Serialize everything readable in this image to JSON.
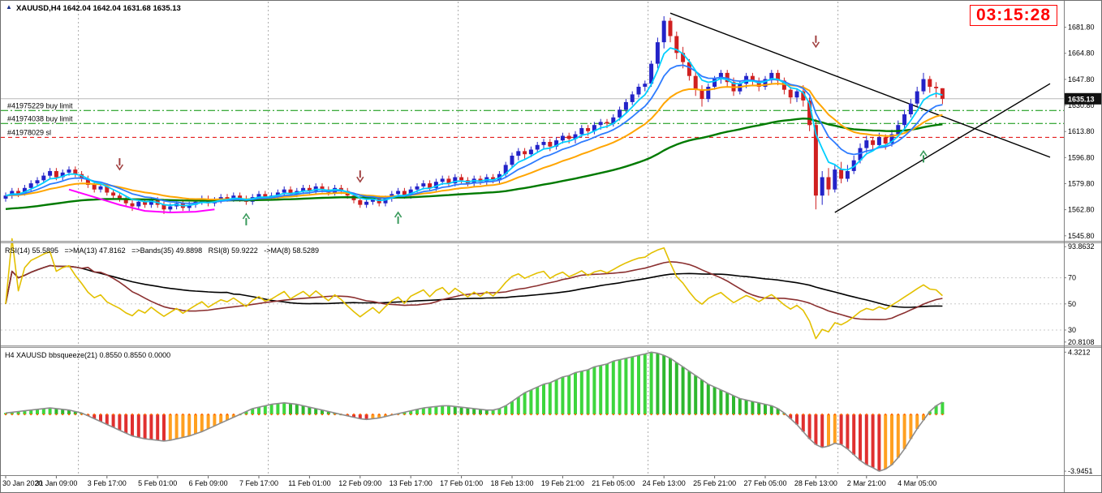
{
  "ui": {
    "chart_icon": "▲",
    "symbol_title": "XAUUSD,H4 1642.04 1642.04 1631.68 1635.13",
    "clock": "03:15:28",
    "rsi_label": "RSI(14) 55.5895   =>MA(13) 47.8162   =>Bands(35) 49.8898   RSI(8) 59.9222   ->MA(8) 58.5289",
    "squeeze_label": "H4 XAUUSD bbsqueeze(21) 0.8550 0.8550 0.0000"
  },
  "colors": {
    "up_candle": "#2323c8",
    "down_candle": "#d02020",
    "ma_fast": "#00cfff",
    "ma_mid": "#2e7cff",
    "ma_slow": "#ffa500",
    "ma_trend": "#007a00",
    "ma_magenta": "#ff00ff",
    "trendline": "#000000",
    "order_buy": "#009000",
    "order_sl": "#e00000",
    "bid_line": "#b8b8b8",
    "price_box_bg": "#111111",
    "rsi_main": "#e3c000",
    "rsi_ma": "#8b3030",
    "rsi_bands": "#000000",
    "level_line": "#c8c8c8",
    "separator": "#ababab",
    "sq_pos_up": "#3dd63d",
    "sq_pos_down": "#2eb82e",
    "sq_neg_down": "#e03030",
    "sq_neg_up": "#ffa020",
    "sq_line": "#8c8c8c",
    "sq_dot": "#ff6600",
    "axis_text": "#000000",
    "arrow_down": "#a04040",
    "arrow_up": "#3a9a5c",
    "clock": "#ff0000"
  },
  "chart_data": [
    {
      "type": "candlestick",
      "symbol": "XAUUSD",
      "timeframe": "H4",
      "ohlc_display": {
        "open": "1642.04",
        "high": "1642.04",
        "low": "1631.68",
        "close": "1635.13"
      },
      "current_price": 1635.13,
      "current_price_label": "1635.13",
      "price_range": {
        "top": 1698.5,
        "bottom": 1542.5
      },
      "price_axis_ticks": [
        "1681.80",
        "1664.80",
        "1647.80",
        "1630.80",
        "1613.80",
        "1596.80",
        "1579.80",
        "1562.80",
        "1545.80"
      ],
      "label_every_bars": 8,
      "time_labels": [
        "30 Jan 2020",
        "31 Jan 09:00",
        "3 Feb 17:00",
        "5 Feb 01:00",
        "6 Feb 09:00",
        "7 Feb 17:00",
        "11 Feb 01:00",
        "12 Feb 09:00",
        "13 Feb 17:00",
        "17 Feb 01:00",
        "18 Feb 13:00",
        "19 Feb 21:00",
        "21 Feb 05:00",
        "24 Feb 13:00",
        "25 Feb 21:00",
        "27 Feb 05:00",
        "28 Feb 13:00",
        "2 Mar 21:00",
        "4 Mar 05:00"
      ],
      "week_separator_bars": [
        12,
        42,
        72,
        102,
        132
      ],
      "orders": [
        {
          "label": "#41975229 buy limit",
          "price": 1627.5,
          "type": "buy_limit"
        },
        {
          "label": "#41974038 buy limit",
          "price": 1619.0,
          "type": "buy_limit"
        },
        {
          "label": "#41978029 sl",
          "price": 1610.0,
          "type": "sl"
        }
      ],
      "trendlines": [
        {
          "b1": 105,
          "p1": 1691,
          "b2": 165,
          "p2": 1597
        },
        {
          "b1": 131,
          "p1": 1561,
          "b2": 165,
          "p2": 1645
        }
      ],
      "arrows": [
        {
          "bar": 18,
          "price": 1589,
          "dir": "down"
        },
        {
          "bar": 56,
          "price": 1581,
          "dir": "down"
        },
        {
          "bar": 128,
          "price": 1669,
          "dir": "down"
        },
        {
          "bar": 38,
          "price": 1560,
          "dir": "up"
        },
        {
          "bar": 62,
          "price": 1561,
          "dir": "up"
        },
        {
          "bar": 145,
          "price": 1601,
          "dir": "up"
        }
      ],
      "magenta_line": {
        "points": [
          [
            10,
            1576
          ],
          [
            14,
            1571
          ],
          [
            18,
            1566
          ],
          [
            22,
            1562
          ],
          [
            26,
            1561
          ],
          [
            30,
            1561.5
          ],
          [
            33,
            1563
          ]
        ]
      },
      "indicators": {
        "fast_ema": 5,
        "mid_ema": 10,
        "slow_ema": 21,
        "trend_alpha": 0.028,
        "trend_seed": 1563
      },
      "candles": [
        [
          1570,
          1574,
          1568,
          1572
        ],
        [
          1572,
          1577,
          1570,
          1575
        ],
        [
          1575,
          1577,
          1571,
          1573
        ],
        [
          1573,
          1579,
          1572,
          1577
        ],
        [
          1577,
          1582,
          1575,
          1580
        ],
        [
          1580,
          1584,
          1578,
          1582
        ],
        [
          1582,
          1587,
          1580,
          1585
        ],
        [
          1585,
          1590,
          1583,
          1588
        ],
        [
          1588,
          1590,
          1582,
          1584
        ],
        [
          1584,
          1589,
          1582,
          1587
        ],
        [
          1587,
          1591,
          1585,
          1589
        ],
        [
          1589,
          1591,
          1584,
          1586
        ],
        [
          1586,
          1588,
          1581,
          1583
        ],
        [
          1583,
          1585,
          1577,
          1579
        ],
        [
          1579,
          1581,
          1574,
          1576
        ],
        [
          1576,
          1580,
          1574,
          1578
        ],
        [
          1578,
          1580,
          1572,
          1574
        ],
        [
          1574,
          1576,
          1570,
          1572
        ],
        [
          1572,
          1574,
          1568,
          1570
        ],
        [
          1570,
          1572,
          1565,
          1567
        ],
        [
          1567,
          1569,
          1562,
          1565
        ],
        [
          1565,
          1570,
          1563,
          1568
        ],
        [
          1568,
          1570,
          1564,
          1566
        ],
        [
          1566,
          1571,
          1564,
          1569
        ],
        [
          1569,
          1571,
          1564,
          1566
        ],
        [
          1566,
          1568,
          1560,
          1563
        ],
        [
          1563,
          1567,
          1561,
          1565
        ],
        [
          1565,
          1569,
          1563,
          1567
        ],
        [
          1567,
          1569,
          1562,
          1564
        ],
        [
          1564,
          1568,
          1562,
          1566
        ],
        [
          1566,
          1570,
          1564,
          1568
        ],
        [
          1568,
          1572,
          1566,
          1570
        ],
        [
          1570,
          1572,
          1565,
          1567
        ],
        [
          1567,
          1571,
          1565,
          1569
        ],
        [
          1569,
          1573,
          1567,
          1571
        ],
        [
          1571,
          1573,
          1568,
          1570
        ],
        [
          1570,
          1574,
          1568,
          1572
        ],
        [
          1572,
          1574,
          1568,
          1570
        ],
        [
          1570,
          1572,
          1566,
          1568
        ],
        [
          1568,
          1573,
          1566,
          1571
        ],
        [
          1571,
          1575,
          1569,
          1573
        ],
        [
          1573,
          1575,
          1569,
          1571
        ],
        [
          1571,
          1574,
          1569,
          1572
        ],
        [
          1572,
          1576,
          1570,
          1574
        ],
        [
          1574,
          1578,
          1572,
          1576
        ],
        [
          1576,
          1578,
          1571,
          1573
        ],
        [
          1573,
          1577,
          1571,
          1575
        ],
        [
          1575,
          1579,
          1573,
          1577
        ],
        [
          1577,
          1579,
          1573,
          1575
        ],
        [
          1575,
          1580,
          1573,
          1578
        ],
        [
          1578,
          1580,
          1574,
          1576
        ],
        [
          1576,
          1578,
          1572,
          1574
        ],
        [
          1574,
          1579,
          1572,
          1577
        ],
        [
          1577,
          1579,
          1573,
          1575
        ],
        [
          1575,
          1577,
          1570,
          1572
        ],
        [
          1572,
          1574,
          1567,
          1569
        ],
        [
          1569,
          1571,
          1564,
          1566
        ],
        [
          1566,
          1570,
          1564,
          1568
        ],
        [
          1568,
          1572,
          1566,
          1570
        ],
        [
          1570,
          1572,
          1565,
          1567
        ],
        [
          1567,
          1572,
          1565,
          1570
        ],
        [
          1570,
          1575,
          1568,
          1573
        ],
        [
          1573,
          1577,
          1571,
          1575
        ],
        [
          1575,
          1577,
          1570,
          1572
        ],
        [
          1572,
          1578,
          1570,
          1576
        ],
        [
          1576,
          1580,
          1574,
          1578
        ],
        [
          1578,
          1582,
          1576,
          1580
        ],
        [
          1580,
          1582,
          1575,
          1577
        ],
        [
          1577,
          1583,
          1575,
          1581
        ],
        [
          1581,
          1585,
          1579,
          1583
        ],
        [
          1583,
          1585,
          1578,
          1580
        ],
        [
          1580,
          1586,
          1578,
          1584
        ],
        [
          1584,
          1586,
          1580,
          1582
        ],
        [
          1582,
          1584,
          1578,
          1580
        ],
        [
          1580,
          1585,
          1578,
          1583
        ],
        [
          1583,
          1585,
          1579,
          1581
        ],
        [
          1581,
          1586,
          1579,
          1584
        ],
        [
          1584,
          1586,
          1580,
          1582
        ],
        [
          1582,
          1588,
          1580,
          1586
        ],
        [
          1586,
          1594,
          1584,
          1592
        ],
        [
          1592,
          1600,
          1590,
          1598
        ],
        [
          1598,
          1603,
          1595,
          1601
        ],
        [
          1601,
          1603,
          1596,
          1599
        ],
        [
          1599,
          1604,
          1597,
          1602
        ],
        [
          1602,
          1607,
          1600,
          1605
        ],
        [
          1605,
          1609,
          1602,
          1607
        ],
        [
          1607,
          1609,
          1601,
          1604
        ],
        [
          1604,
          1610,
          1602,
          1608
        ],
        [
          1608,
          1613,
          1606,
          1611
        ],
        [
          1611,
          1613,
          1606,
          1609
        ],
        [
          1609,
          1614,
          1606,
          1612
        ],
        [
          1612,
          1618,
          1610,
          1616
        ],
        [
          1616,
          1618,
          1611,
          1614
        ],
        [
          1614,
          1620,
          1612,
          1618
        ],
        [
          1618,
          1622,
          1615,
          1620
        ],
        [
          1620,
          1622,
          1616,
          1619
        ],
        [
          1619,
          1625,
          1617,
          1623
        ],
        [
          1623,
          1630,
          1621,
          1628
        ],
        [
          1628,
          1635,
          1626,
          1633
        ],
        [
          1633,
          1640,
          1631,
          1638
        ],
        [
          1638,
          1645,
          1636,
          1643
        ],
        [
          1643,
          1647,
          1640,
          1645
        ],
        [
          1645,
          1660,
          1643,
          1658
        ],
        [
          1658,
          1675,
          1655,
          1672
        ],
        [
          1672,
          1689,
          1668,
          1686
        ],
        [
          1686,
          1688,
          1672,
          1676
        ],
        [
          1676,
          1679,
          1661,
          1665
        ],
        [
          1665,
          1669,
          1655,
          1659
        ],
        [
          1659,
          1661,
          1647,
          1650
        ],
        [
          1650,
          1653,
          1637,
          1641
        ],
        [
          1641,
          1644,
          1630,
          1635
        ],
        [
          1635,
          1645,
          1633,
          1643
        ],
        [
          1643,
          1650,
          1641,
          1648
        ],
        [
          1648,
          1654,
          1645,
          1652
        ],
        [
          1652,
          1654,
          1643,
          1646
        ],
        [
          1646,
          1649,
          1637,
          1640
        ],
        [
          1640,
          1647,
          1638,
          1645
        ],
        [
          1645,
          1652,
          1642,
          1650
        ],
        [
          1650,
          1652,
          1644,
          1647
        ],
        [
          1647,
          1649,
          1640,
          1643
        ],
        [
          1643,
          1650,
          1641,
          1648
        ],
        [
          1648,
          1654,
          1645,
          1652
        ],
        [
          1652,
          1654,
          1644,
          1647
        ],
        [
          1647,
          1649,
          1638,
          1641
        ],
        [
          1641,
          1643,
          1632,
          1636
        ],
        [
          1636,
          1642,
          1633,
          1640
        ],
        [
          1640,
          1644,
          1630,
          1634
        ],
        [
          1634,
          1636,
          1614,
          1618
        ],
        [
          1618,
          1622,
          1563,
          1572
        ],
        [
          1572,
          1588,
          1566,
          1584
        ],
        [
          1584,
          1590,
          1572,
          1576
        ],
        [
          1576,
          1592,
          1574,
          1589
        ],
        [
          1589,
          1594,
          1580,
          1583
        ],
        [
          1583,
          1592,
          1581,
          1588
        ],
        [
          1588,
          1598,
          1586,
          1595
        ],
        [
          1595,
          1606,
          1593,
          1603
        ],
        [
          1603,
          1611,
          1600,
          1608
        ],
        [
          1608,
          1610,
          1601,
          1605
        ],
        [
          1605,
          1613,
          1603,
          1610
        ],
        [
          1610,
          1612,
          1602,
          1606
        ],
        [
          1606,
          1615,
          1604,
          1612
        ],
        [
          1612,
          1621,
          1610,
          1618
        ],
        [
          1618,
          1628,
          1616,
          1625
        ],
        [
          1625,
          1635,
          1623,
          1632
        ],
        [
          1632,
          1643,
          1630,
          1640
        ],
        [
          1640,
          1652,
          1638,
          1648
        ],
        [
          1648,
          1650,
          1639,
          1643
        ],
        [
          1643,
          1646,
          1636,
          1642.04
        ],
        [
          1642.04,
          1642.04,
          1631.68,
          1635.13
        ]
      ]
    },
    {
      "type": "line",
      "name": "RSI",
      "panel_label": "RSI(14) 55.5895 =>MA(13) 47.8162 =>Bands(35) 49.8898 RSI(8) 59.9222 ->MA(8) 58.5289",
      "current_values": {
        "rsi14": 55.5895,
        "ma13": 47.8162,
        "bands35": 49.8898,
        "rsi8": 59.9222,
        "ma8": 58.5289
      },
      "periods": {
        "rsi": 14,
        "ma": 13,
        "bands": 35
      },
      "levels": [
        70,
        50,
        30
      ],
      "axis_ticks": [
        [
          "93.8632",
          93.8632
        ],
        [
          "70",
          70
        ],
        [
          "50",
          50
        ],
        [
          "30",
          30
        ],
        [
          "20.8108",
          20.8108
        ]
      ]
    },
    {
      "type": "bar",
      "name": "bbsqueeze",
      "panel_label": "H4 XAUUSD bbsqueeze(21) 0.8550 0.8550 0.0000",
      "current_values": [
        0.855,
        0.855,
        0.0
      ],
      "axis_ticks": [
        [
          "4.3212",
          4.3212
        ],
        [
          "-3.9451",
          -3.9451
        ]
      ],
      "values": [
        0.1,
        0.15,
        0.2,
        0.25,
        0.3,
        0.35,
        0.4,
        0.45,
        0.4,
        0.35,
        0.3,
        0.2,
        0.1,
        -0.1,
        -0.3,
        -0.5,
        -0.7,
        -0.9,
        -1.1,
        -1.3,
        -1.5,
        -1.6,
        -1.7,
        -1.75,
        -1.8,
        -1.85,
        -1.8,
        -1.7,
        -1.6,
        -1.5,
        -1.35,
        -1.2,
        -1.0,
        -0.8,
        -0.6,
        -0.4,
        -0.2,
        0.0,
        0.2,
        0.4,
        0.5,
        0.6,
        0.7,
        0.75,
        0.8,
        0.75,
        0.7,
        0.6,
        0.5,
        0.4,
        0.3,
        0.2,
        0.1,
        0.0,
        -0.1,
        -0.2,
        -0.3,
        -0.35,
        -0.3,
        -0.25,
        -0.15,
        -0.05,
        0.05,
        0.15,
        0.25,
        0.35,
        0.45,
        0.5,
        0.55,
        0.6,
        0.6,
        0.55,
        0.5,
        0.45,
        0.4,
        0.35,
        0.3,
        0.3,
        0.4,
        0.6,
        0.9,
        1.2,
        1.5,
        1.7,
        1.9,
        2.1,
        2.2,
        2.4,
        2.6,
        2.7,
        2.9,
        3.0,
        3.1,
        3.3,
        3.4,
        3.5,
        3.7,
        3.8,
        3.9,
        4.0,
        4.1,
        4.2,
        4.3212,
        4.25,
        4.1,
        3.9,
        3.6,
        3.3,
        3.0,
        2.7,
        2.4,
        2.1,
        1.9,
        1.7,
        1.5,
        1.3,
        1.1,
        1.0,
        0.9,
        0.8,
        0.7,
        0.6,
        0.4,
        0.1,
        -0.3,
        -0.7,
        -1.2,
        -1.7,
        -2.1,
        -2.3,
        -2.2,
        -2.0,
        -2.1,
        -2.4,
        -2.8,
        -3.2,
        -3.5,
        -3.7,
        -3.9451,
        -3.8,
        -3.5,
        -3.0,
        -2.4,
        -1.7,
        -1.0,
        -0.4,
        0.2,
        0.6,
        0.855
      ]
    }
  ]
}
